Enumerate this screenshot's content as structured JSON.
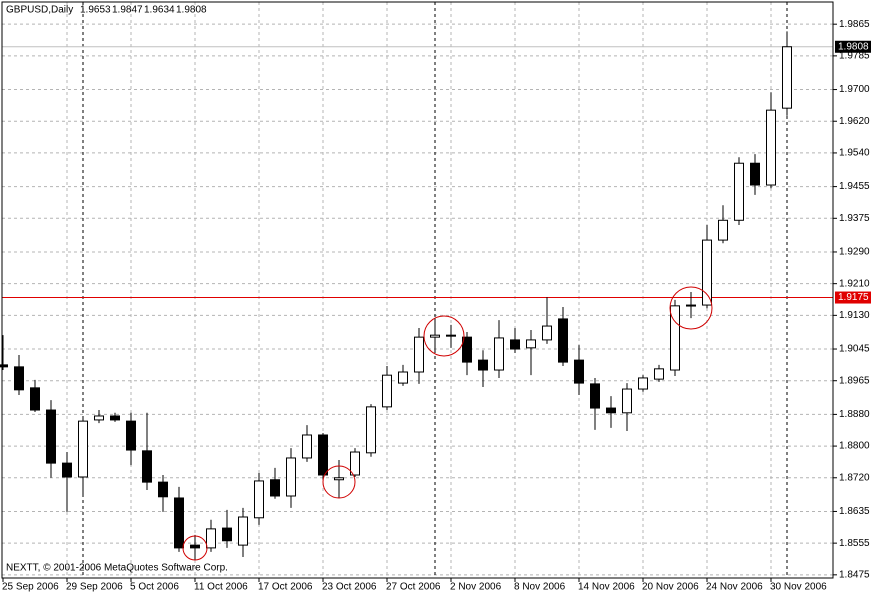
{
  "chart_data": {
    "type": "candlestick",
    "title": "GBPUSD,Daily",
    "copyright": "NEXTT, © 2001-2006 MetaQuotes Software Corp.",
    "categories": [
      "25 Sep 2006",
      null,
      null,
      null,
      "29 Sep 2006",
      null,
      null,
      null,
      "5 Oct 2006",
      null,
      null,
      null,
      "11 Oct 2006",
      null,
      null,
      null,
      "17 Oct 2006",
      null,
      null,
      null,
      "23 Oct 2006",
      null,
      null,
      null,
      "27 Oct 2006",
      null,
      null,
      null,
      "2 Nov 2006",
      null,
      null,
      null,
      "8 Nov 2006",
      null,
      null,
      null,
      "14 Nov 2006",
      null,
      null,
      null,
      "20 Nov 2006",
      null,
      null,
      null,
      "24 Nov 2006",
      null,
      null,
      null,
      "30 Nov 2006",
      null
    ],
    "open": [
      1.9005,
      1.9,
      1.8947,
      1.8891,
      1.8757,
      1.8722,
      1.8866,
      1.8876,
      1.8863,
      1.8788,
      1.8709,
      1.8669,
      1.855,
      1.8543,
      1.8593,
      1.855,
      1.8619,
      1.8715,
      1.8674,
      1.877,
      1.8828,
      1.8715,
      1.8727,
      1.8783,
      1.8899,
      1.8959,
      1.8987,
      1.9075,
      1.908,
      1.9075,
      1.9017,
      1.8992,
      1.9068,
      1.9048,
      1.9068,
      1.9121,
      1.9017,
      1.8957,
      1.8896,
      1.8884,
      1.8944,
      1.8969,
      1.8992,
      1.9154,
      1.9156,
      1.932,
      1.937,
      1.9514,
      1.9459,
      1.9653
    ],
    "high": [
      1.908,
      1.903,
      1.8967,
      1.8916,
      1.8785,
      1.8871,
      1.8891,
      1.8884,
      1.8884,
      1.8884,
      1.8727,
      1.8697,
      1.8576,
      1.8614,
      1.8639,
      1.8644,
      1.8732,
      1.8745,
      1.8795,
      1.8853,
      1.8833,
      1.8765,
      1.8795,
      1.8906,
      1.9002,
      1.9005,
      1.9098,
      1.9123,
      1.9106,
      1.9088,
      1.9042,
      1.9118,
      1.9098,
      1.9093,
      1.9176,
      1.9151,
      1.9055,
      1.8972,
      1.8926,
      1.8959,
      1.8979,
      1.9005,
      1.9169,
      1.9189,
      1.9358,
      1.9408,
      1.9529,
      1.9537,
      1.9693,
      1.9847
    ],
    "low": [
      1.8992,
      1.8929,
      1.8886,
      1.872,
      1.8634,
      1.8672,
      1.8858,
      1.8861,
      1.8752,
      1.8689,
      1.8634,
      1.8533,
      1.8513,
      1.8533,
      1.8543,
      1.852,
      1.8601,
      1.8667,
      1.8644,
      1.876,
      1.8715,
      1.8669,
      1.8722,
      1.8773,
      1.8891,
      1.8952,
      1.8957,
      1.9037,
      1.9048,
      1.8979,
      1.8949,
      1.8972,
      1.9035,
      1.8979,
      1.9058,
      1.9002,
      1.8929,
      1.8841,
      1.8846,
      1.8838,
      1.8937,
      1.8962,
      1.8977,
      1.9123,
      1.9148,
      1.9312,
      1.9358,
      1.9434,
      1.9451,
      1.9634
    ],
    "close": [
      1.9,
      1.8942,
      1.8891,
      1.8757,
      1.8722,
      1.8863,
      1.8876,
      1.8866,
      1.879,
      1.8709,
      1.8672,
      1.8543,
      1.8543,
      1.8591,
      1.8561,
      1.8621,
      1.8712,
      1.8674,
      1.877,
      1.8828,
      1.8727,
      1.872,
      1.8785,
      1.8899,
      1.8979,
      1.8987,
      1.9075,
      1.908,
      1.9078,
      1.9012,
      1.8992,
      1.9073,
      1.9045,
      1.9068,
      1.9103,
      1.9012,
      1.8959,
      1.8896,
      1.8884,
      1.8944,
      1.8972,
      1.8995,
      1.9154,
      1.9156,
      1.932,
      1.937,
      1.9514,
      1.9459,
      1.9648,
      1.9808
    ],
    "up_color": "#ffffff",
    "down_color": "#000000",
    "ylim": [
      1.8467,
      1.9921
    ],
    "yticks": [
      1.9865,
      1.9785,
      {
        "value": 1.97,
        "label": "1.9700"
      },
      {
        "value": 1.962,
        "label": "1.9620"
      },
      {
        "value": 1.954,
        "label": "1.9540"
      },
      1.9455,
      1.9375,
      {
        "value": 1.929,
        "label": "1.9290"
      },
      {
        "value": 1.921,
        "label": "1.9210"
      },
      {
        "value": 1.913,
        "label": "1.9130"
      },
      1.9045,
      1.8965,
      {
        "value": 1.888,
        "label": "1.8880"
      },
      {
        "value": 1.88,
        "label": "1.8800"
      },
      {
        "value": 1.872,
        "label": "1.8720"
      },
      1.8635,
      1.8555,
      1.8475
    ],
    "grid": true,
    "hlines": [
      {
        "value": 1.9808,
        "label": "1.9808",
        "color": "#c0c0c0",
        "label_bg": "#000000"
      },
      {
        "value": 1.9175,
        "label": "1.9175",
        "color": "#e00000",
        "label_bg": "#e00000"
      }
    ]
  }
}
